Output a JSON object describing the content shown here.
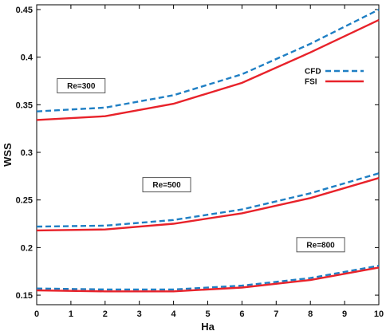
{
  "chart_data": {
    "type": "line",
    "xlabel": "Ha",
    "ylabel": "WSS",
    "xlim": [
      0,
      10
    ],
    "ylim": [
      0.14,
      0.455
    ],
    "x_ticks": [
      0,
      1,
      2,
      3,
      4,
      5,
      6,
      7,
      8,
      9,
      10
    ],
    "y_ticks": [
      0.15,
      0.2,
      0.25,
      0.3,
      0.35,
      0.4,
      0.45
    ],
    "grid": false,
    "legend_position": "top-right",
    "legend": [
      {
        "label": "CFD",
        "color": "#1f7fc4",
        "style": "dashed"
      },
      {
        "label": "FSI",
        "color": "#e8222a",
        "style": "solid"
      }
    ],
    "annotations": [
      {
        "text": "Re=300",
        "x": 1.3,
        "y": 0.37
      },
      {
        "text": "Re=500",
        "x": 3.8,
        "y": 0.266
      },
      {
        "text": "Re=800",
        "x": 8.3,
        "y": 0.203
      }
    ],
    "series": [
      {
        "label": "Re=300",
        "type": "CFD",
        "x": [
          0,
          2,
          4,
          6,
          8,
          10
        ],
        "y": [
          0.343,
          0.347,
          0.36,
          0.382,
          0.414,
          0.45
        ],
        "color": "#1f7fc4",
        "style": "dashed"
      },
      {
        "label": "Re=300",
        "type": "FSI",
        "x": [
          0,
          2,
          4,
          6,
          8,
          10
        ],
        "y": [
          0.334,
          0.338,
          0.351,
          0.373,
          0.405,
          0.439
        ],
        "color": "#e8222a",
        "style": "solid"
      },
      {
        "label": "Re=500",
        "type": "CFD",
        "x": [
          0,
          2,
          4,
          6,
          8,
          10
        ],
        "y": [
          0.222,
          0.223,
          0.229,
          0.24,
          0.257,
          0.278
        ],
        "color": "#1f7fc4",
        "style": "dashed"
      },
      {
        "label": "Re=500",
        "type": "FSI",
        "x": [
          0,
          2,
          4,
          6,
          8,
          10
        ],
        "y": [
          0.218,
          0.219,
          0.225,
          0.236,
          0.252,
          0.273
        ],
        "color": "#e8222a",
        "style": "solid"
      },
      {
        "label": "Re=800",
        "type": "CFD",
        "x": [
          0,
          2,
          4,
          6,
          8,
          10
        ],
        "y": [
          0.157,
          0.156,
          0.156,
          0.16,
          0.168,
          0.181
        ],
        "color": "#1f7fc4",
        "style": "dashed"
      },
      {
        "label": "Re=800",
        "type": "FSI",
        "x": [
          0,
          2,
          4,
          6,
          8,
          10
        ],
        "y": [
          0.155,
          0.154,
          0.154,
          0.158,
          0.166,
          0.179
        ],
        "color": "#e8222a",
        "style": "solid"
      }
    ]
  }
}
